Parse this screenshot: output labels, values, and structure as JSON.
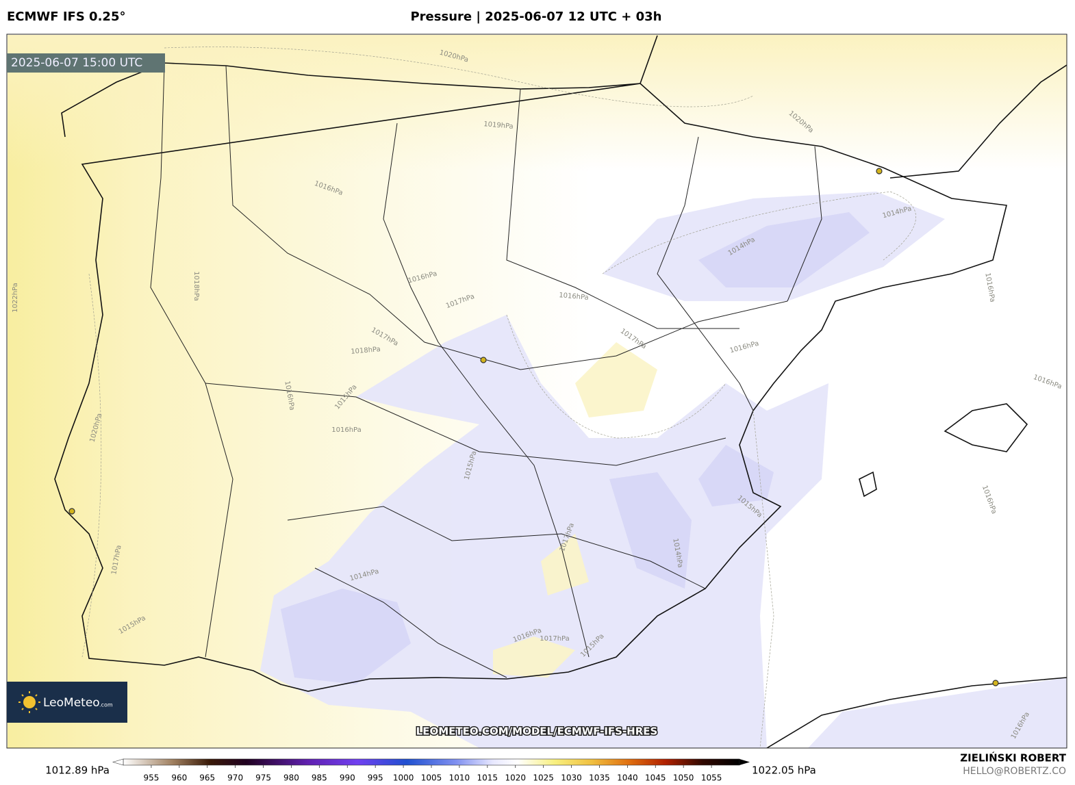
{
  "header": {
    "model": "ECMWF IFS 0.25°",
    "title": "Pressure | 2025-06-07 12 UTC + 03h"
  },
  "map": {
    "valid_time": "2025-06-07 15:00 UTC",
    "isobar_labels": [
      "1020hPa",
      "1019hPa",
      "1020hPa",
      "1016hPa",
      "1018hPa",
      "1022hPa",
      "1016hPa",
      "1017hPa",
      "1016hPa",
      "1014hPa",
      "1014hPa",
      "1016hPa",
      "1017hPa",
      "1018hPa",
      "1017hPa",
      "1016hPa",
      "1016hPa",
      "1016hPa",
      "1015hPa",
      "1016hPa",
      "1020hPa",
      "1015hPa",
      "1015hPa",
      "1016hPa",
      "1017hPa",
      "1014hPa",
      "1014hPa",
      "1017hPa",
      "1015hPa",
      "1016hPa",
      "1017hPa",
      "1015hPa",
      "1016hPa"
    ],
    "url": "LEOMETEO.COM/MODEL/ECMWF-IFS-HRES",
    "logo": "LeoMeteo",
    "logo_suffix": ".com"
  },
  "colorbar": {
    "min_label": "1012.89 hPa",
    "max_label": "1022.05 hPa",
    "lim": [
      950,
      1060
    ],
    "ticks": [
      955,
      960,
      965,
      970,
      975,
      980,
      985,
      990,
      995,
      1000,
      1005,
      1010,
      1015,
      1020,
      1025,
      1030,
      1035,
      1040,
      1045,
      1050,
      1055
    ]
  },
  "credits": {
    "author": "ZIELIŃSKI ROBERT",
    "email": "HELLO@ROBERTZ.CO"
  }
}
